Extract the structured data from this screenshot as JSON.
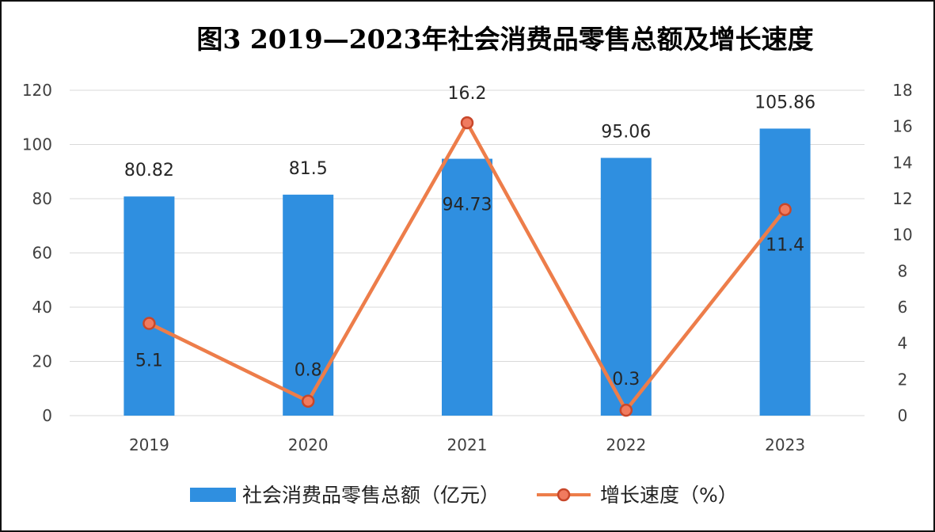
{
  "colors": {
    "bar": "#2f8fe0",
    "line": "#ed7d4a",
    "marker_fill": "#f07b5f",
    "grid": "#d9d9d9",
    "border": "#111111"
  },
  "chart_data": {
    "type": "bar+line",
    "title": "图3   2019—2023年社会消费品零售总额及增长速度",
    "categories": [
      "2019",
      "2020",
      "2021",
      "2022",
      "2023"
    ],
    "series": [
      {
        "name": "社会消费品零售总额（亿元）",
        "type": "bar",
        "axis": "left",
        "values": [
          80.82,
          81.5,
          94.73,
          95.06,
          105.86
        ],
        "labels": [
          "80.82",
          "81.5",
          "94.73",
          "95.06",
          "105.86"
        ]
      },
      {
        "name": "增长速度（%）",
        "type": "line",
        "axis": "right",
        "values": [
          5.1,
          0.8,
          16.2,
          0.3,
          11.4
        ],
        "labels": [
          "5.1",
          "0.8",
          "16.2",
          "0.3",
          "11.4"
        ]
      }
    ],
    "y_left": {
      "min": 0,
      "max": 120,
      "ticks": [
        "0",
        "20",
        "40",
        "60",
        "80",
        "100",
        "120"
      ]
    },
    "y_right": {
      "min": 0,
      "max": 18,
      "ticks": [
        "0",
        "2",
        "4",
        "6",
        "8",
        "10",
        "12",
        "14",
        "16",
        "18"
      ]
    },
    "grid": true,
    "legend_position": "bottom"
  }
}
